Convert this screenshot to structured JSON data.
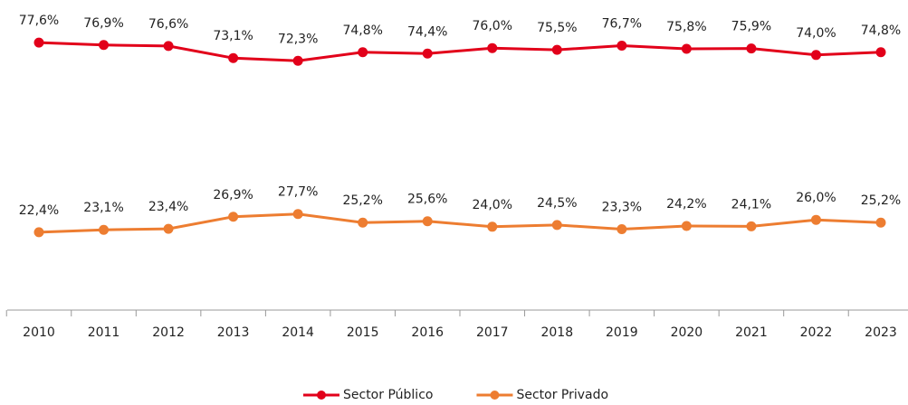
{
  "chart_data": {
    "type": "line",
    "categories": [
      "2010",
      "2011",
      "2012",
      "2013",
      "2014",
      "2015",
      "2016",
      "2017",
      "2018",
      "2019",
      "2020",
      "2021",
      "2022",
      "2023"
    ],
    "series": [
      {
        "name": "Sector Público",
        "color": "#e2001a",
        "values": [
          77.6,
          76.9,
          76.6,
          73.1,
          72.3,
          74.8,
          74.4,
          76.0,
          75.5,
          76.7,
          75.8,
          75.9,
          74.0,
          74.8
        ],
        "value_labels": [
          "77,6%",
          "76,9%",
          "76,6%",
          "73,1%",
          "72,3%",
          "74,8%",
          "74,4%",
          "76,0%",
          "75,5%",
          "76,7%",
          "75,8%",
          "75,9%",
          "74,0%",
          "74,8%"
        ]
      },
      {
        "name": "Sector Privado",
        "color": "#ed7d31",
        "values": [
          22.4,
          23.1,
          23.4,
          26.9,
          27.7,
          25.2,
          25.6,
          24.0,
          24.5,
          23.3,
          24.2,
          24.1,
          26.0,
          25.2
        ],
        "value_labels": [
          "22,4%",
          "23,1%",
          "23,4%",
          "26,9%",
          "27,7%",
          "25,2%",
          "25,6%",
          "24,0%",
          "24,5%",
          "23,3%",
          "24,2%",
          "24,1%",
          "26,0%",
          "25,2%"
        ]
      }
    ],
    "ylim": [
      0,
      90
    ],
    "legend": "bottom"
  }
}
